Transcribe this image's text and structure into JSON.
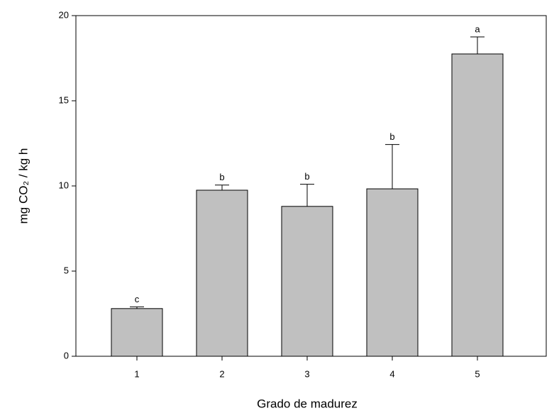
{
  "chart_data": {
    "type": "bar",
    "xlabel": "Grado de madurez",
    "ylabel": "mg CO₂ / kg h",
    "categories": [
      "1",
      "2",
      "3",
      "4",
      "5"
    ],
    "values": [
      2.8,
      9.75,
      8.8,
      9.83,
      17.75
    ],
    "errors": [
      0.1,
      0.3,
      1.3,
      2.6,
      1.0
    ],
    "labels": [
      "c",
      "b",
      "b",
      "b",
      "a"
    ],
    "color": "#c0c0c0",
    "ylim": [
      0,
      20
    ],
    "yticks": [
      0,
      5,
      10,
      15,
      20
    ]
  }
}
